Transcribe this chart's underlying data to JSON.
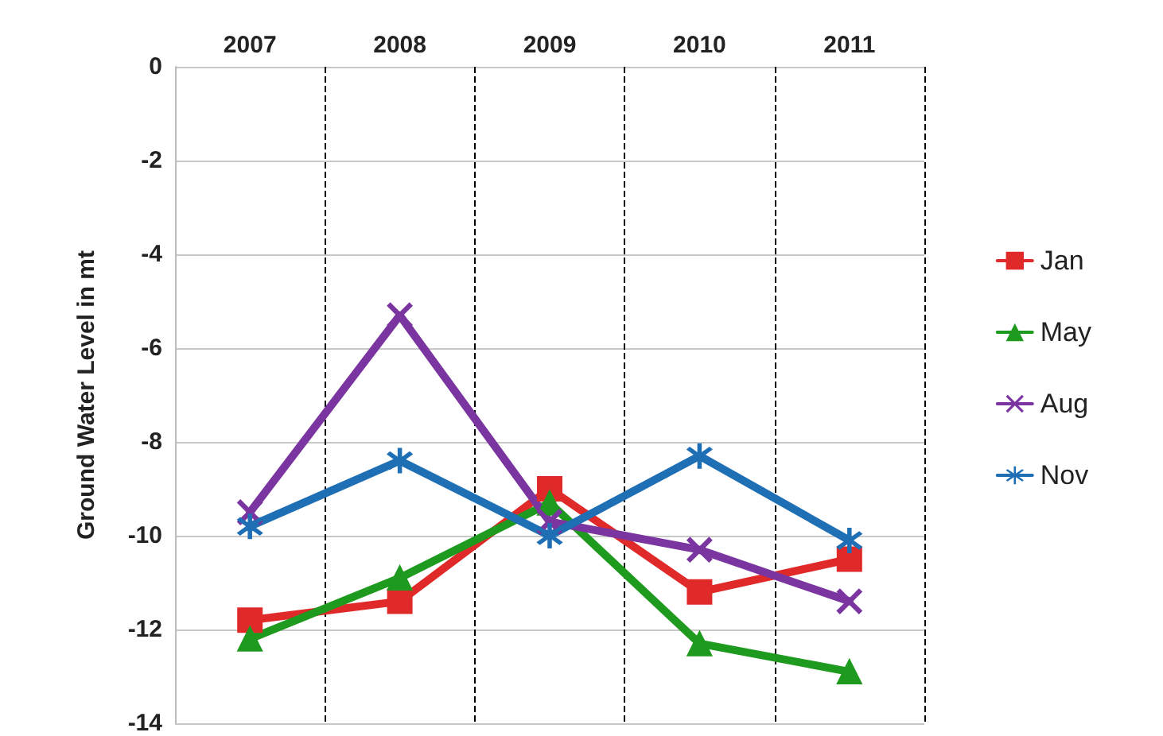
{
  "chart_data": {
    "type": "line",
    "ylabel": "Ground Water Level in mt",
    "categories": [
      "2007",
      "2008",
      "2009",
      "2010",
      "2011"
    ],
    "series": [
      {
        "name": "Jan",
        "color": "#e02a2a",
        "marker": "square",
        "values": [
          -11.8,
          -11.4,
          -9.0,
          -11.2,
          -10.5
        ]
      },
      {
        "name": "May",
        "color": "#1e9a1e",
        "marker": "triangle",
        "values": [
          -12.2,
          -10.9,
          -9.3,
          -12.3,
          -12.9
        ]
      },
      {
        "name": "Aug",
        "color": "#7a35a0",
        "marker": "cross",
        "values": [
          -9.5,
          -5.3,
          -9.7,
          -10.3,
          -11.4
        ]
      },
      {
        "name": "Nov",
        "color": "#1f6fb5",
        "marker": "star",
        "values": [
          -9.8,
          -8.4,
          -10.0,
          -8.3,
          -10.1
        ]
      }
    ],
    "ylim": [
      -14,
      0
    ],
    "yticks": [
      -14,
      -12,
      -10,
      -8,
      -6,
      -4,
      -2,
      0
    ],
    "grid": true,
    "legend": "right",
    "line_style": "solid"
  }
}
